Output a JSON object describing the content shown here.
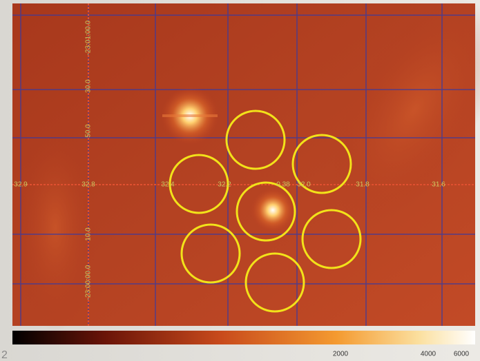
{
  "image": {
    "ra_labels": [
      "32.9",
      "32.8",
      "32.4",
      "32.2",
      "0.38",
      "32.0",
      "31.8",
      "31.6"
    ],
    "dec_labels": [
      "-23:01:00.0",
      "30.0",
      "50.0",
      "10.0",
      "-23:00:00.0"
    ]
  },
  "colorbar": {
    "labels": [
      "2000",
      "4000",
      "6000"
    ]
  },
  "page_number": "2"
}
